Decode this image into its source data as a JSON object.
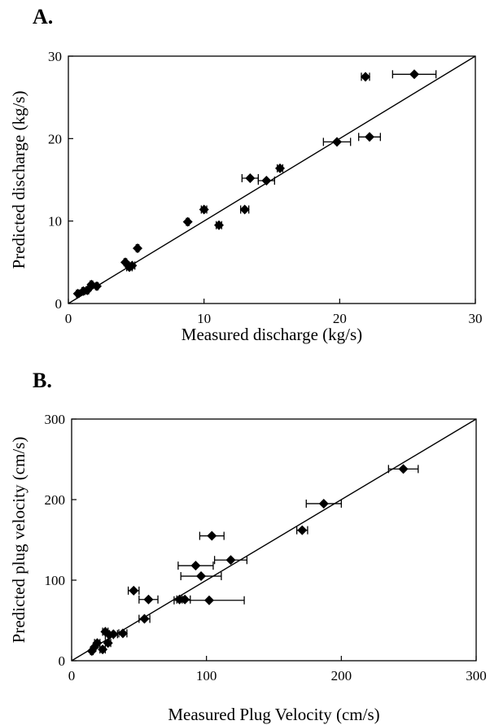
{
  "chart_data": [
    {
      "type": "scatter",
      "panel_label": "A.",
      "xlabel": "Measured discharge (kg/s)",
      "ylabel": "Predicted discharge (kg/s)",
      "xlim": [
        0,
        30
      ],
      "ylim": [
        0,
        30
      ],
      "xticks": [
        0,
        10,
        20,
        30
      ],
      "yticks": [
        0,
        10,
        20,
        30
      ],
      "identity_line": true,
      "grid": false,
      "series": [
        {
          "points": [
            {
              "x": 0.7,
              "y": 1.2,
              "xerr": 0.1
            },
            {
              "x": 1.1,
              "y": 1.5,
              "xerr": 0.1
            },
            {
              "x": 1.4,
              "y": 1.6,
              "xerr": 0.1
            },
            {
              "x": 1.7,
              "y": 2.3,
              "xerr": 0.1
            },
            {
              "x": 2.1,
              "y": 2.1,
              "xerr": 0.1
            },
            {
              "x": 4.2,
              "y": 5.0,
              "xerr": 0.1
            },
            {
              "x": 4.5,
              "y": 4.4,
              "xerr": 0.2
            },
            {
              "x": 4.7,
              "y": 4.6,
              "xerr": 0.2
            },
            {
              "x": 5.1,
              "y": 6.7,
              "xerr": 0.1
            },
            {
              "x": 8.8,
              "y": 9.9,
              "xerr": 0.1
            },
            {
              "x": 10.0,
              "y": 11.4,
              "xerr": 0.2
            },
            {
              "x": 11.1,
              "y": 9.5,
              "xerr": 0.2
            },
            {
              "x": 13.0,
              "y": 11.4,
              "xerr": 0.3
            },
            {
              "x": 13.4,
              "y": 15.2,
              "xerr": 0.6
            },
            {
              "x": 14.6,
              "y": 14.9,
              "xerr": 0.6
            },
            {
              "x": 15.6,
              "y": 16.4,
              "xerr": 0.2
            },
            {
              "x": 19.8,
              "y": 19.6,
              "xerr": 1.0
            },
            {
              "x": 21.9,
              "y": 27.5,
              "xerr": 0.3
            },
            {
              "x": 22.2,
              "y": 20.2,
              "xerr": 0.8
            },
            {
              "x": 25.5,
              "y": 27.8,
              "xerr": 1.6
            }
          ]
        }
      ]
    },
    {
      "type": "scatter",
      "panel_label": "B.",
      "xlabel": "Measured Plug Velocity (cm/s)",
      "ylabel": "Predicted plug velocity (cm/s)",
      "xlim": [
        0,
        300
      ],
      "ylim": [
        0,
        300
      ],
      "xticks": [
        0,
        100,
        200,
        300
      ],
      "yticks": [
        0,
        100,
        200,
        300
      ],
      "identity_line": true,
      "grid": false,
      "series": [
        {
          "points": [
            {
              "x": 15,
              "y": 12,
              "xerr": 1
            },
            {
              "x": 17,
              "y": 17,
              "xerr": 1
            },
            {
              "x": 19,
              "y": 22,
              "xerr": 2
            },
            {
              "x": 23,
              "y": 14,
              "xerr": 2
            },
            {
              "x": 25,
              "y": 36,
              "xerr": 2
            },
            {
              "x": 27,
              "y": 22,
              "xerr": 2
            },
            {
              "x": 28,
              "y": 32,
              "xerr": 3
            },
            {
              "x": 31,
              "y": 33,
              "xerr": 3
            },
            {
              "x": 38,
              "y": 34,
              "xerr": 3
            },
            {
              "x": 46,
              "y": 87,
              "xerr": 4
            },
            {
              "x": 54,
              "y": 52,
              "xerr": 4
            },
            {
              "x": 57,
              "y": 76,
              "xerr": 7
            },
            {
              "x": 80,
              "y": 76,
              "xerr": 2
            },
            {
              "x": 84,
              "y": 76,
              "xerr": 4
            },
            {
              "x": 92,
              "y": 118,
              "xerr": 13
            },
            {
              "x": 96,
              "y": 105,
              "xerr": 15
            },
            {
              "x": 102,
              "y": 75,
              "xerr": 26
            },
            {
              "x": 104,
              "y": 155,
              "xerr": 9
            },
            {
              "x": 118,
              "y": 125,
              "xerr": 12
            },
            {
              "x": 171,
              "y": 162,
              "xerr": 4
            },
            {
              "x": 187,
              "y": 195,
              "xerr": 13
            },
            {
              "x": 246,
              "y": 238,
              "xerr": 11
            }
          ]
        }
      ]
    }
  ]
}
